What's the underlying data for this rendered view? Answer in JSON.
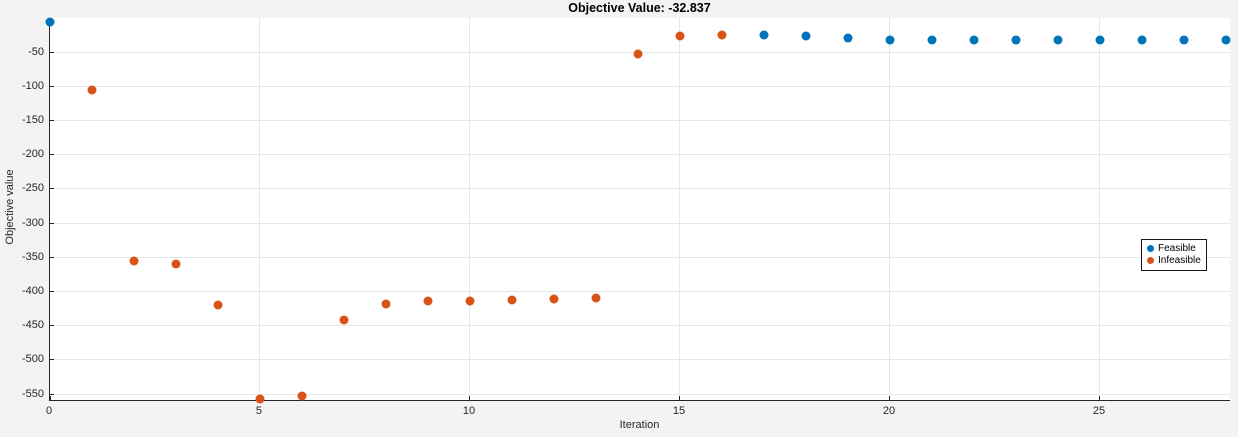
{
  "figure": {
    "title": "Objective Value: -32.837"
  },
  "chart_data": {
    "type": "scatter",
    "title": "Objective Value: -32.837",
    "xlabel": "Iteration",
    "ylabel": "Objective value",
    "xlim": [
      0,
      28.12
    ],
    "ylim": [
      -560,
      0
    ],
    "xticks": [
      0,
      5,
      10,
      15,
      20,
      25
    ],
    "yticks": [
      -550,
      -500,
      -450,
      -400,
      -350,
      -300,
      -250,
      -200,
      -150,
      -100,
      -50
    ],
    "grid": true,
    "final_objective": -32.837,
    "legend": {
      "position": "middle-right",
      "entries": [
        {
          "label": "Feasible",
          "color": "#0072BD"
        },
        {
          "label": "Infeasible",
          "color": "#D95319"
        }
      ]
    },
    "series": [
      {
        "name": "Feasible",
        "color": "#0072BD",
        "points": [
          [
            0,
            -6
          ],
          [
            17,
            -25
          ],
          [
            18,
            -26
          ],
          [
            19,
            -29
          ],
          [
            20,
            -32
          ],
          [
            21,
            -32.8
          ],
          [
            22,
            -32.8
          ],
          [
            23,
            -32.8
          ],
          [
            24,
            -32.8
          ],
          [
            25,
            -32.8
          ],
          [
            26,
            -32.8
          ],
          [
            27,
            -32.8
          ],
          [
            28,
            -32.8
          ]
        ]
      },
      {
        "name": "Infeasible",
        "color": "#D95319",
        "points": [
          [
            1,
            -106
          ],
          [
            2,
            -356
          ],
          [
            3,
            -359
          ],
          [
            4,
            -420
          ],
          [
            5,
            -557
          ],
          [
            6,
            -553
          ],
          [
            7,
            -442
          ],
          [
            8,
            -418
          ],
          [
            9,
            -414
          ],
          [
            10,
            -414
          ],
          [
            11,
            -412
          ],
          [
            12,
            -411
          ],
          [
            13,
            -409
          ],
          [
            14,
            -53
          ],
          [
            15,
            -27
          ],
          [
            16,
            -25
          ]
        ]
      }
    ]
  },
  "colors": {
    "figure_bg": "#f3f3f3",
    "plot_bg": "#ffffff",
    "grid": "#e6e6e6",
    "axis": "#262626",
    "tick_label": "#262626",
    "title": "#000000"
  }
}
